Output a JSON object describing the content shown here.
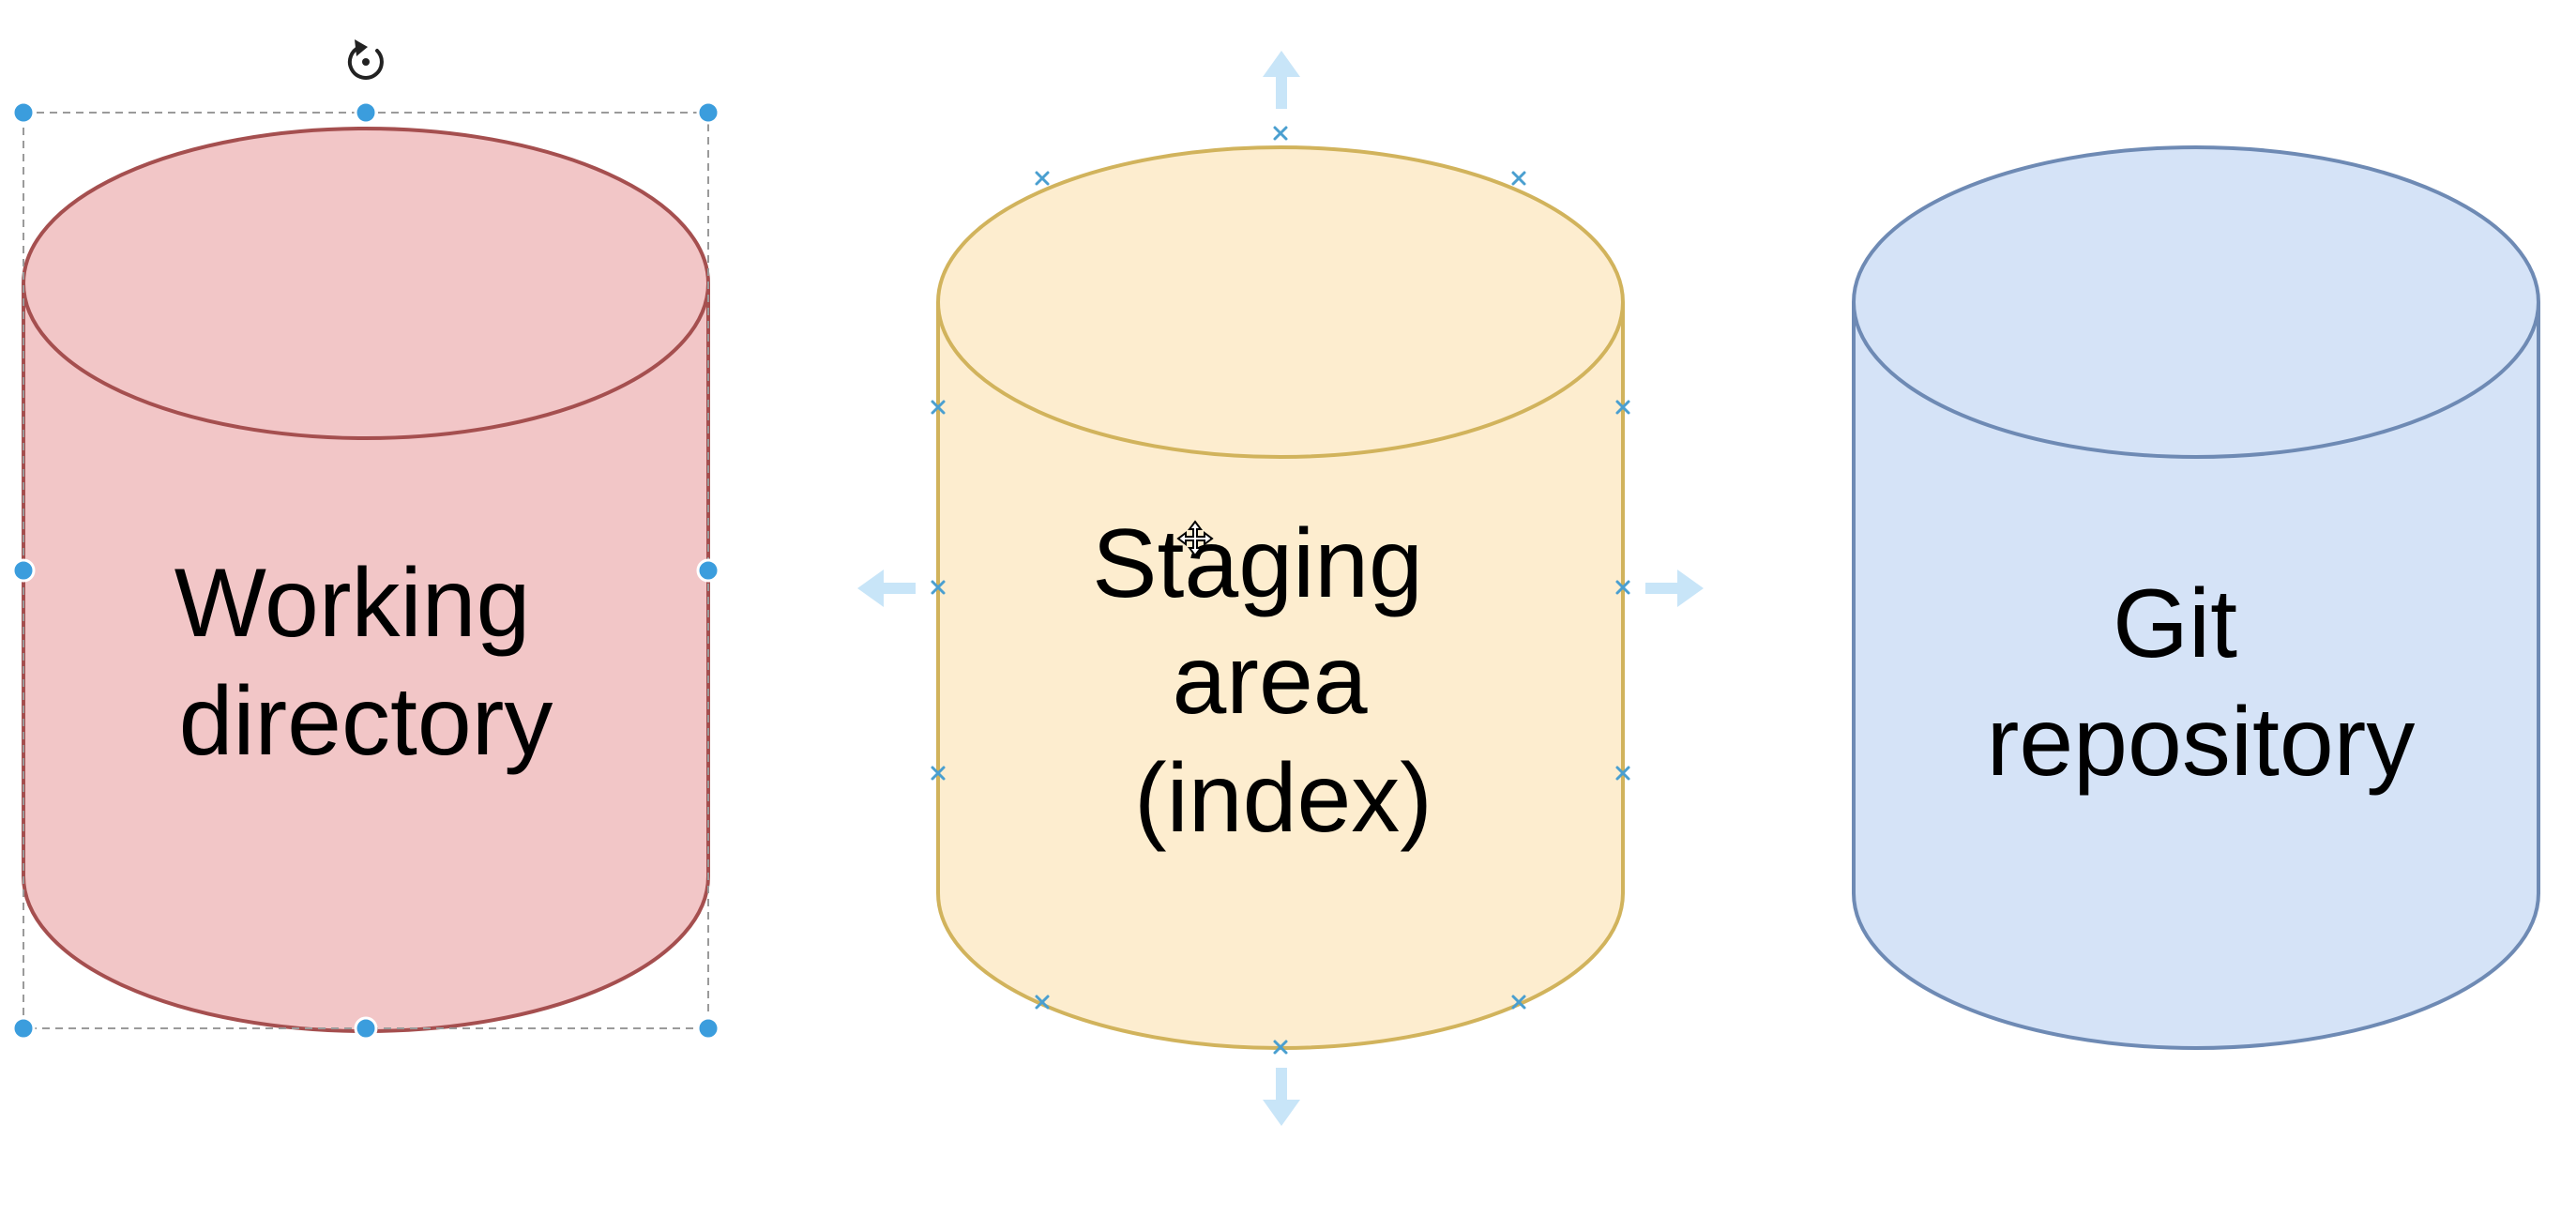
{
  "diagram": {
    "canvas_background": "#ffffff",
    "cylinders": [
      {
        "id": "working-directory",
        "lines": [
          "Working",
          "directory"
        ],
        "fill": "#f2c6c7",
        "stroke": "#a54f4f",
        "selected": true
      },
      {
        "id": "staging-area",
        "lines": [
          "Staging",
          "area",
          "(index)"
        ],
        "fill": "#fdedcf",
        "stroke": "#d1b35c",
        "hovered": true
      },
      {
        "id": "git-repository",
        "lines": [
          "Git",
          "repository"
        ],
        "fill": "#d5e3f7",
        "stroke": "#6e8ab4"
      }
    ],
    "selection": {
      "handle_color": "#3b9ddd",
      "frame_color": "#9a9a9a",
      "rotate_icon": "rotate-icon"
    },
    "hover": {
      "connection_point_color": "#4a9fd0",
      "arrow_color": "#c8e5f8",
      "cursor_icon": "move-cursor-icon"
    }
  }
}
